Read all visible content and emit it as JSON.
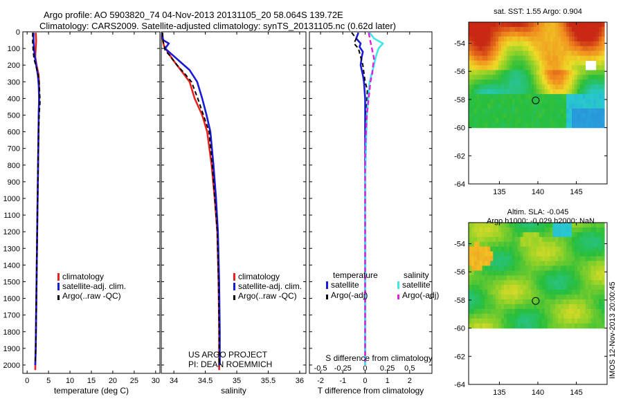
{
  "titles": {
    "line1": "Argo profile: AO 5903820_74 04-Nov-2013 20131105_20 58.064S 139.72E",
    "line2": "Climatology: CARS2009. Satellite-adjusted climatology: synTS_20131105.nc (0.62d later)"
  },
  "colors": {
    "climatology": "#e8231e",
    "satellite": "#1a1ad6",
    "argo": "#000000",
    "satellite_salinity": "#3ee8e8",
    "argo_salinity": "#e020e0"
  },
  "credit": "IMOS 12-Nov-2013 20:00:45",
  "project": {
    "line1": "US ARGO PROJECT",
    "line2": "PI: DEAN ROEMMICH"
  },
  "chart_data": [
    {
      "id": "temperature",
      "type": "line",
      "xlabel": "temperature (deg C)",
      "xlim": [
        -1,
        31
      ],
      "ylim": [
        2050,
        0
      ],
      "xticks": [
        0,
        5,
        10,
        15,
        20,
        25,
        30
      ],
      "yticks": [
        0,
        100,
        200,
        300,
        400,
        500,
        600,
        700,
        800,
        900,
        1000,
        1100,
        1200,
        1300,
        1400,
        1500,
        1600,
        1700,
        1800,
        1900,
        2000
      ],
      "legend": [
        "climatology",
        "satellite-adj. clim.",
        "Argo(..raw -QC)"
      ],
      "series": [
        {
          "name": "climatology",
          "role": "clim",
          "points": [
            [
              2.0,
              5
            ],
            [
              2.1,
              50
            ],
            [
              2.0,
              100
            ],
            [
              1.9,
              150
            ],
            [
              2.2,
              200
            ],
            [
              2.7,
              260
            ],
            [
              2.8,
              320
            ],
            [
              2.8,
              400
            ],
            [
              2.7,
              500
            ],
            [
              2.6,
              700
            ],
            [
              2.5,
              900
            ],
            [
              2.4,
              1100
            ],
            [
              2.3,
              1300
            ],
            [
              2.2,
              1500
            ],
            [
              2.1,
              1700
            ],
            [
              2.0,
              1900
            ],
            [
              1.9,
              2030
            ]
          ]
        },
        {
          "name": "satellite-adj. clim.",
          "role": "sat",
          "points": [
            [
              1.5,
              5
            ],
            [
              1.5,
              50
            ],
            [
              1.6,
              100
            ],
            [
              1.8,
              150
            ],
            [
              2.1,
              200
            ],
            [
              2.5,
              260
            ],
            [
              2.7,
              320
            ],
            [
              2.8,
              400
            ],
            [
              2.7,
              500
            ],
            [
              2.6,
              700
            ],
            [
              2.5,
              900
            ],
            [
              2.4,
              1100
            ],
            [
              2.3,
              1300
            ],
            [
              2.2,
              1500
            ],
            [
              2.1,
              1700
            ],
            [
              2.0,
              1900
            ],
            [
              1.9,
              2000
            ]
          ]
        },
        {
          "name": "Argo(..raw -QC)",
          "role": "argo",
          "points": [
            [
              1.3,
              5
            ],
            [
              1.3,
              60
            ],
            [
              1.4,
              110
            ],
            [
              1.6,
              160
            ],
            [
              2.0,
              200
            ],
            [
              2.5,
              250
            ],
            [
              2.8,
              300
            ],
            [
              2.9,
              350
            ],
            [
              3.0,
              420
            ],
            [
              2.8,
              500
            ],
            [
              2.6,
              700
            ],
            [
              2.5,
              900
            ],
            [
              2.4,
              1100
            ],
            [
              2.3,
              1300
            ],
            [
              2.2,
              1500
            ],
            [
              2.1,
              1700
            ],
            [
              2.0,
              1900
            ],
            [
              1.9,
              1980
            ]
          ]
        }
      ]
    },
    {
      "id": "salinity",
      "type": "line",
      "xlabel": "salinity",
      "xlim": [
        33.8,
        36.1
      ],
      "ylim": [
        2050,
        0
      ],
      "xticks": [
        34,
        34.5,
        35,
        35.5,
        36
      ],
      "legend": [
        "climatology",
        "satellite-adj. clim.",
        "Argo(..raw -QC)"
      ],
      "series": [
        {
          "name": "climatology",
          "role": "clim",
          "points": [
            [
              33.81,
              5
            ],
            [
              33.82,
              40
            ],
            [
              33.84,
              80
            ],
            [
              33.9,
              120
            ],
            [
              33.97,
              160
            ],
            [
              34.05,
              200
            ],
            [
              34.15,
              250
            ],
            [
              34.25,
              300
            ],
            [
              34.33,
              400
            ],
            [
              34.45,
              500
            ],
            [
              34.53,
              600
            ],
            [
              34.6,
              800
            ],
            [
              34.65,
              1000
            ],
            [
              34.69,
              1200
            ],
            [
              34.71,
              1500
            ],
            [
              34.72,
              1800
            ],
            [
              34.72,
              2030
            ]
          ]
        },
        {
          "name": "satellite-adj. clim.",
          "role": "sat",
          "points": [
            [
              33.81,
              5
            ],
            [
              33.83,
              50
            ],
            [
              33.92,
              70
            ],
            [
              33.86,
              100
            ],
            [
              33.98,
              140
            ],
            [
              34.1,
              180
            ],
            [
              34.25,
              230
            ],
            [
              34.37,
              300
            ],
            [
              34.45,
              400
            ],
            [
              34.52,
              500
            ],
            [
              34.58,
              600
            ],
            [
              34.63,
              800
            ],
            [
              34.67,
              1000
            ],
            [
              34.7,
              1200
            ],
            [
              34.72,
              1500
            ],
            [
              34.73,
              1800
            ],
            [
              34.73,
              2000
            ]
          ]
        },
        {
          "name": "Argo(..raw -QC)",
          "role": "argo",
          "points": [
            [
              33.82,
              5
            ],
            [
              33.83,
              60
            ],
            [
              33.86,
              110
            ],
            [
              33.95,
              150
            ],
            [
              34.05,
              200
            ],
            [
              34.17,
              250
            ],
            [
              34.28,
              300
            ],
            [
              34.38,
              400
            ],
            [
              34.47,
              500
            ],
            [
              34.56,
              600
            ],
            [
              34.61,
              800
            ],
            [
              34.65,
              1000
            ],
            [
              34.69,
              1200
            ],
            [
              34.71,
              1500
            ],
            [
              34.72,
              1800
            ],
            [
              34.72,
              1980
            ]
          ]
        }
      ]
    },
    {
      "id": "difference",
      "type": "line",
      "xlabel": "T difference from climatology",
      "x2label": "S difference from climatology",
      "xlim": [
        -2.5,
        3.0
      ],
      "ylim": [
        2050,
        0
      ],
      "xticks": [
        -2,
        -1,
        0,
        1,
        2
      ],
      "x2ticks": [
        -0.5,
        -0.25,
        0,
        0.25,
        0.5
      ],
      "x2scale": 4,
      "legend_groups": [
        {
          "title": "temperature",
          "entries": [
            "satellite",
            "Argo(-adj)"
          ]
        },
        {
          "title": "salinity",
          "entries": [
            "satellite",
            "Argo(-adj)"
          ]
        }
      ],
      "series": [
        {
          "name": "satellite",
          "group": "temperature",
          "role": "sat",
          "points": [
            [
              -0.3,
              5
            ],
            [
              -0.4,
              40
            ],
            [
              -0.2,
              70
            ],
            [
              -0.25,
              90
            ],
            [
              -0.1,
              120
            ],
            [
              -0.15,
              150
            ],
            [
              -0.2,
              200
            ],
            [
              -0.1,
              260
            ],
            [
              -0.05,
              300
            ],
            [
              0.0,
              400
            ],
            [
              0.0,
              600
            ],
            [
              0.0,
              800
            ],
            [
              0.0,
              1000
            ],
            [
              0.0,
              1200
            ],
            [
              0.0,
              1400
            ],
            [
              0.0,
              1600
            ],
            [
              0.0,
              1800
            ],
            [
              0.0,
              2000
            ]
          ]
        },
        {
          "name": "Argo(-adj)",
          "group": "temperature",
          "role": "argo",
          "points": [
            [
              -0.6,
              5
            ],
            [
              -0.4,
              40
            ],
            [
              -0.5,
              70
            ],
            [
              -0.3,
              100
            ],
            [
              -0.2,
              150
            ],
            [
              -0.1,
              200
            ],
            [
              0.0,
              300
            ],
            [
              0.1,
              350
            ],
            [
              0.05,
              500
            ],
            [
              0.0,
              700
            ],
            [
              0.0,
              1000
            ],
            [
              0.0,
              1300
            ],
            [
              0.0,
              1600
            ],
            [
              0.0,
              1900
            ],
            [
              0.0,
              1980
            ]
          ]
        },
        {
          "name": "satellite",
          "group": "salinity",
          "role": "sat_s",
          "points": [
            [
              0.05,
              5
            ],
            [
              0.1,
              40
            ],
            [
              0.2,
              70
            ],
            [
              0.15,
              100
            ],
            [
              0.12,
              150
            ],
            [
              0.1,
              200
            ],
            [
              0.05,
              300
            ],
            [
              0.02,
              500
            ],
            [
              0.01,
              700
            ],
            [
              0.0,
              900
            ],
            [
              0.0,
              1200
            ],
            [
              0.0,
              1500
            ],
            [
              0.0,
              1800
            ],
            [
              0.0,
              2000
            ]
          ]
        },
        {
          "name": "Argo(-adj)",
          "group": "salinity",
          "role": "argo_s",
          "points": [
            [
              0.04,
              5
            ],
            [
              0.06,
              60
            ],
            [
              0.08,
              110
            ],
            [
              0.1,
              160
            ],
            [
              0.09,
              200
            ],
            [
              0.08,
              250
            ],
            [
              0.06,
              300
            ],
            [
              0.04,
              400
            ],
            [
              0.02,
              500
            ],
            [
              0.0,
              700
            ],
            [
              0.0,
              1000
            ],
            [
              0.0,
              1300
            ],
            [
              0.0,
              1600
            ],
            [
              0.0,
              1900
            ],
            [
              0.0,
              1980
            ]
          ]
        }
      ]
    },
    {
      "id": "sst-map",
      "type": "heatmap",
      "title": "sat. SST: 1.55 Argo: 0.904",
      "xlim": [
        131,
        149
      ],
      "ylim": [
        -64,
        -52.5
      ],
      "xticks": [
        135,
        140,
        145
      ],
      "yticks": [
        -54,
        -56,
        -58,
        -60,
        -62,
        -64
      ],
      "data_ylim": [
        -60,
        -52.5
      ],
      "argo_position": [
        139.72,
        -58.064
      ]
    },
    {
      "id": "sla-map",
      "type": "heatmap",
      "title": "Altim. SLA: -0.045",
      "subtitle": "Argo h1000: -0.029 h2000: NaN",
      "xlim": [
        131,
        149
      ],
      "ylim": [
        -64,
        -52.5
      ],
      "xticks": [
        135,
        140,
        145
      ],
      "yticks": [
        -54,
        -56,
        -58,
        -60,
        -62,
        -64
      ],
      "data_ylim": [
        -60,
        -52.5
      ],
      "argo_position": [
        139.72,
        -58.064
      ]
    }
  ]
}
